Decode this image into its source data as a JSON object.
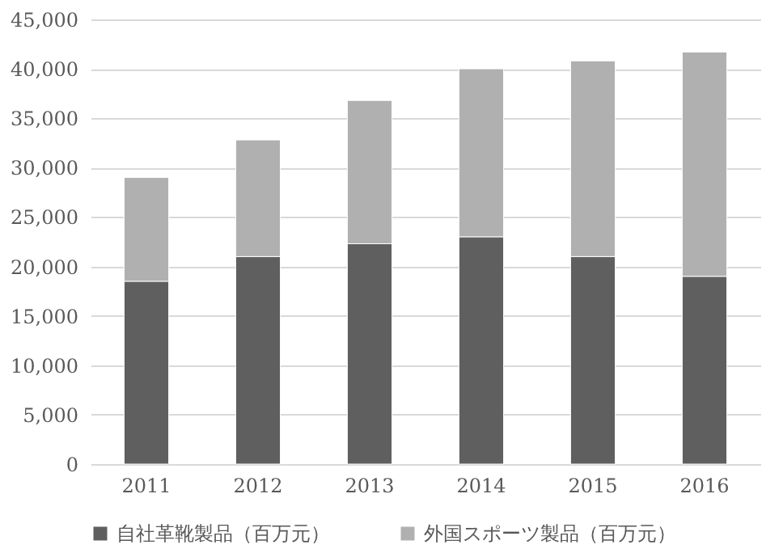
{
  "chart_data": {
    "type": "bar",
    "stacked": true,
    "categories": [
      "2011",
      "2012",
      "2013",
      "2014",
      "2015",
      "2016"
    ],
    "series": [
      {
        "name": "自社革靴製品（百万元）",
        "color": "#5f5f5f",
        "values": [
          18500,
          21000,
          22300,
          23000,
          21000,
          19000
        ]
      },
      {
        "name": "外国スポーツ製品（百万元）",
        "color": "#b0b0b0",
        "values": [
          10500,
          11800,
          14500,
          17000,
          19800,
          22700
        ]
      }
    ],
    "ylim": [
      0,
      45000
    ],
    "yticks": [
      {
        "value": 0,
        "label": "0"
      },
      {
        "value": 5000,
        "label": "5,000"
      },
      {
        "value": 10000,
        "label": "10,000"
      },
      {
        "value": 15000,
        "label": "15,000"
      },
      {
        "value": 20000,
        "label": "20,000"
      },
      {
        "value": 25000,
        "label": "25,000"
      },
      {
        "value": 30000,
        "label": "30,000"
      },
      {
        "value": 35000,
        "label": "35,000"
      },
      {
        "value": 40000,
        "label": "40,000"
      },
      {
        "value": 45000,
        "label": "45,000"
      }
    ],
    "grid": "y",
    "legend": "bottom"
  }
}
